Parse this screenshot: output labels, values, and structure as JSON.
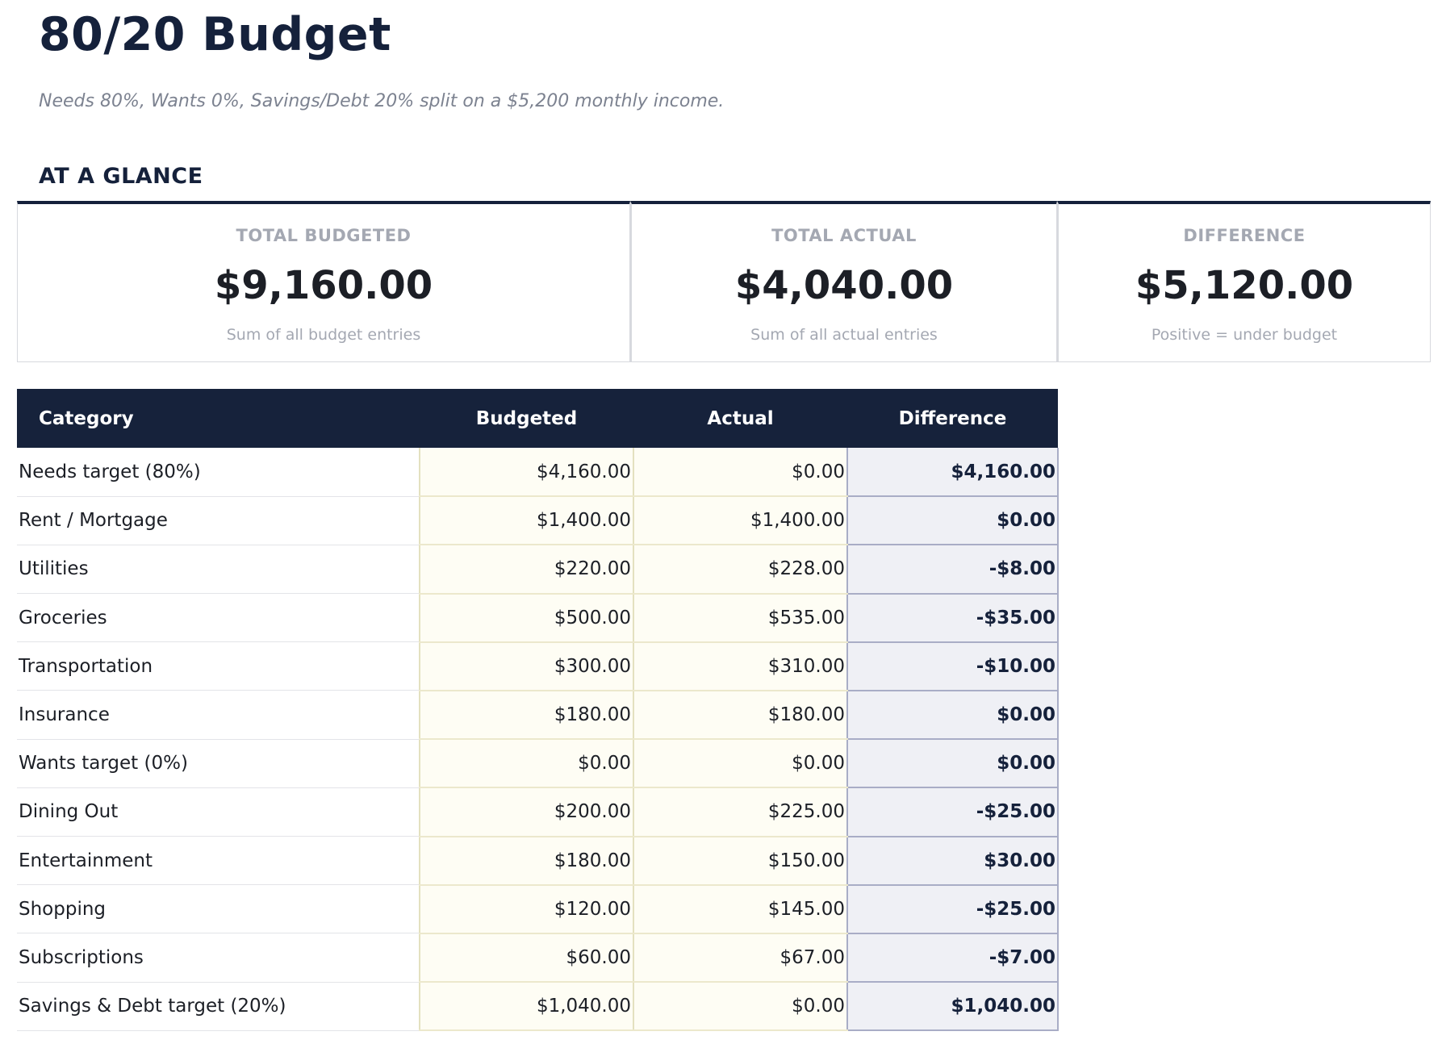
{
  "header": {
    "title": "80/20 Budget",
    "subtitle": "Needs 80%, Wants 0%, Savings/Debt 20% split on a $5,200 monthly income."
  },
  "glance": {
    "heading": "AT A GLANCE",
    "cards": [
      {
        "label": "TOTAL BUDGETED",
        "value": "$9,160.00",
        "note": "Sum of all budget entries"
      },
      {
        "label": "TOTAL ACTUAL",
        "value": "$4,040.00",
        "note": "Sum of all actual entries"
      },
      {
        "label": "DIFFERENCE",
        "value": "$5,120.00",
        "note": "Positive = under budget"
      }
    ]
  },
  "table": {
    "columns": [
      "Category",
      "Budgeted",
      "Actual",
      "Difference"
    ],
    "rows": [
      {
        "category": "Needs target (80%)",
        "budgeted": "$4,160.00",
        "actual": "$0.00",
        "difference": "$4,160.00"
      },
      {
        "category": "Rent / Mortgage",
        "budgeted": "$1,400.00",
        "actual": "$1,400.00",
        "difference": "$0.00"
      },
      {
        "category": "Utilities",
        "budgeted": "$220.00",
        "actual": "$228.00",
        "difference": "-$8.00"
      },
      {
        "category": "Groceries",
        "budgeted": "$500.00",
        "actual": "$535.00",
        "difference": "-$35.00"
      },
      {
        "category": "Transportation",
        "budgeted": "$300.00",
        "actual": "$310.00",
        "difference": "-$10.00"
      },
      {
        "category": "Insurance",
        "budgeted": "$180.00",
        "actual": "$180.00",
        "difference": "$0.00"
      },
      {
        "category": "Wants target (0%)",
        "budgeted": "$0.00",
        "actual": "$0.00",
        "difference": "$0.00"
      },
      {
        "category": "Dining Out",
        "budgeted": "$200.00",
        "actual": "$225.00",
        "difference": "-$25.00"
      },
      {
        "category": "Entertainment",
        "budgeted": "$180.00",
        "actual": "$150.00",
        "difference": "$30.00"
      },
      {
        "category": "Shopping",
        "budgeted": "$120.00",
        "actual": "$145.00",
        "difference": "-$25.00"
      },
      {
        "category": "Subscriptions",
        "budgeted": "$60.00",
        "actual": "$67.00",
        "difference": "-$7.00"
      },
      {
        "category": "Savings & Debt target (20%)",
        "budgeted": "$1,040.00",
        "actual": "$0.00",
        "difference": "$1,040.00"
      }
    ]
  },
  "colors": {
    "navy": "#15213b",
    "budget_cell_bg": "#fefdf4",
    "difference_cell_bg": "#eff0f5",
    "muted_text": "#a4a8b2"
  }
}
